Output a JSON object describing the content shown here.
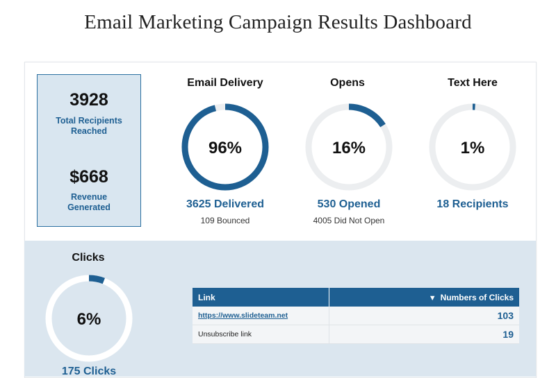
{
  "title": "Email Marketing Campaign Results Dashboard",
  "colors": {
    "accent": "#1e5f92",
    "ring_track": "#eceef0",
    "panel_blue": "#d9e6f0",
    "lower_bg": "#dbe6ef"
  },
  "summary": {
    "recipients_value": "3928",
    "recipients_label_line1": "Total Recipients",
    "recipients_label_line2": "Reached",
    "revenue_value": "$668",
    "revenue_label_line1": "Revenue",
    "revenue_label_line2": "Generated"
  },
  "metrics": [
    {
      "title": "Email Delivery",
      "percent_text": "96%",
      "percent": 0.96,
      "main": "3625 Delivered",
      "sub": "109 Bounced"
    },
    {
      "title": "Opens",
      "percent_text": "16%",
      "percent": 0.16,
      "main": "530 Opened",
      "sub": "4005 Did Not Open"
    },
    {
      "title": "Text Here",
      "percent_text": "1%",
      "percent": 0.01,
      "main": "18 Recipients",
      "sub": ""
    }
  ],
  "clicks": {
    "title": "Clicks",
    "percent_text": "6%",
    "percent": 0.06,
    "main": "175 Clicks"
  },
  "links_table": {
    "col_link": "Link",
    "col_clicks": "Numbers of Clicks",
    "sort_icon": "triangle-down-icon",
    "rows": [
      {
        "link": "https://www.slideteam.net",
        "clicks": "103"
      },
      {
        "link": "Unsubscribe link",
        "clicks": "19"
      }
    ]
  }
}
